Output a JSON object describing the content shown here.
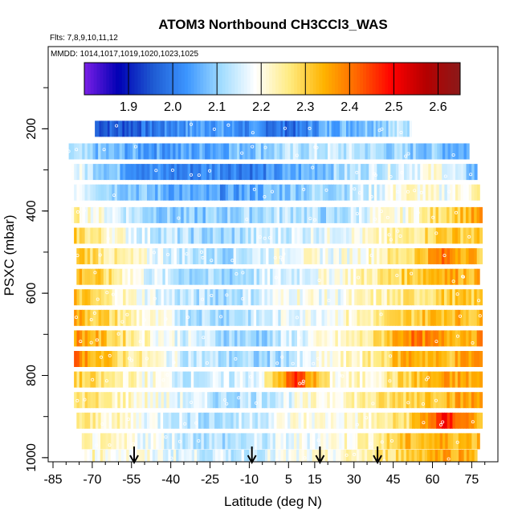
{
  "chart_data": {
    "type": "heatmap",
    "title": "ATOM3 Northbound CH3CCl3_WAS",
    "flights_label": "Flts: 7,8,9,10,11,12",
    "dates_label": "MMDD: 1014,1017,1019,1020,1023,1025",
    "xlabel": "Latitude (deg N)",
    "ylabel": "PSXC (mbar)",
    "xlim": [
      -85,
      85
    ],
    "ylim": [
      1010,
      0
    ],
    "x_ticks": [
      -85,
      -70,
      -55,
      -40,
      -25,
      -10,
      5,
      15,
      30,
      45,
      60,
      75
    ],
    "y_ticks": [
      200,
      400,
      600,
      800,
      1000
    ],
    "colorbar": {
      "range": [
        1.8,
        2.65
      ],
      "ticks": [
        1.9,
        2.0,
        2.1,
        2.2,
        2.3,
        2.4,
        2.5,
        2.6
      ],
      "colors": [
        "#7b1fe6",
        "#0000b4",
        "#1e5ad2",
        "#3c96ff",
        "#a0dcff",
        "#ffffff",
        "#ffeb82",
        "#ffb400",
        "#ff6400",
        "#ff0000",
        "#b40000",
        "#8b1a1a"
      ]
    },
    "profile_markers": {
      "latitudes": [
        -54,
        -9,
        17,
        39
      ],
      "note": "arrows marking profile locations"
    },
    "series": [
      {
        "p_center": 200,
        "lat_range": [
          -69,
          52
        ],
        "values": [
          1.97,
          1.96,
          1.99,
          2.03,
          2.05,
          2.02,
          2.0,
          1.98,
          2.06,
          2.08,
          2.11,
          2.14
        ]
      },
      {
        "p_center": 255,
        "lat_range": [
          -79,
          74
        ],
        "values": [
          2.12,
          2.07,
          2.05,
          2.04,
          2.06,
          2.09,
          2.12,
          2.14,
          2.13,
          2.1,
          2.09,
          2.06
        ]
      },
      {
        "p_center": 305,
        "lat_range": [
          -78,
          77
        ],
        "values": [
          2.18,
          2.1,
          2.02,
          2.0,
          2.03,
          2.0,
          2.05,
          2.1,
          2.14,
          2.17,
          2.2,
          2.06
        ]
      },
      {
        "p_center": 355,
        "lat_range": [
          -77,
          78
        ],
        "values": [
          2.2,
          2.12,
          2.08,
          2.05,
          2.03,
          2.06,
          2.1,
          2.12,
          2.15,
          2.22,
          2.18,
          2.24
        ]
      },
      {
        "p_center": 410,
        "lat_range": [
          -78,
          79
        ],
        "values": [
          2.24,
          2.18,
          2.12,
          2.08,
          2.1,
          2.12,
          2.14,
          2.1,
          2.18,
          2.2,
          2.3,
          2.35
        ]
      },
      {
        "p_center": 460,
        "lat_range": [
          -77,
          79
        ],
        "values": [
          2.3,
          2.22,
          2.15,
          2.12,
          2.1,
          2.14,
          2.16,
          2.18,
          2.2,
          2.25,
          2.32,
          2.3
        ]
      },
      {
        "p_center": 510,
        "lat_range": [
          -76,
          79
        ],
        "values": [
          2.33,
          2.24,
          2.18,
          2.14,
          2.12,
          2.16,
          2.2,
          2.18,
          2.22,
          2.28,
          2.4,
          2.32
        ]
      },
      {
        "p_center": 560,
        "lat_range": [
          -76,
          78
        ],
        "values": [
          2.34,
          2.26,
          2.16,
          2.12,
          2.1,
          2.14,
          2.16,
          2.2,
          2.24,
          2.3,
          2.36,
          2.33
        ]
      },
      {
        "p_center": 610,
        "lat_range": [
          -77,
          79
        ],
        "values": [
          2.33,
          2.24,
          2.18,
          2.13,
          2.12,
          2.15,
          2.2,
          2.18,
          2.22,
          2.26,
          2.3,
          2.3
        ]
      },
      {
        "p_center": 660,
        "lat_range": [
          -77,
          79
        ],
        "values": [
          2.35,
          2.28,
          2.2,
          2.14,
          2.12,
          2.14,
          2.18,
          2.2,
          2.24,
          2.3,
          2.34,
          2.32
        ]
      },
      {
        "p_center": 710,
        "lat_range": [
          -77,
          79
        ],
        "values": [
          2.38,
          2.3,
          2.22,
          2.16,
          2.12,
          2.1,
          2.16,
          2.2,
          2.25,
          2.4,
          2.35,
          2.36
        ]
      },
      {
        "p_center": 760,
        "lat_range": [
          -77,
          79
        ],
        "values": [
          2.4,
          2.3,
          2.22,
          2.15,
          2.12,
          2.1,
          2.14,
          2.2,
          2.24,
          2.36,
          2.32,
          2.38
        ]
      },
      {
        "p_center": 810,
        "lat_range": [
          -77,
          79
        ],
        "values": [
          2.3,
          2.25,
          2.2,
          2.15,
          2.14,
          2.18,
          2.46,
          2.2,
          2.22,
          2.3,
          2.35,
          2.34
        ]
      },
      {
        "p_center": 860,
        "lat_range": [
          -77,
          79
        ],
        "values": [
          2.28,
          2.24,
          2.2,
          2.16,
          2.12,
          2.14,
          2.18,
          2.22,
          2.25,
          2.3,
          2.34,
          2.36
        ]
      },
      {
        "p_center": 910,
        "lat_range": [
          -76,
          79
        ],
        "values": [
          2.26,
          2.22,
          2.18,
          2.14,
          2.12,
          2.16,
          2.2,
          2.2,
          2.22,
          2.28,
          2.48,
          2.32
        ]
      },
      {
        "p_center": 960,
        "lat_range": [
          -74,
          78
        ],
        "values": [
          2.22,
          2.2,
          2.18,
          2.14,
          2.12,
          2.14,
          2.18,
          2.2,
          2.24,
          2.32,
          2.34,
          2.33
        ]
      },
      {
        "p_center": 1000,
        "lat_range": [
          -73,
          77
        ],
        "values": [
          2.22,
          2.2,
          2.18,
          2.16,
          2.14,
          2.16,
          2.18,
          2.2,
          2.24,
          2.3,
          2.36,
          2.34
        ]
      }
    ]
  }
}
